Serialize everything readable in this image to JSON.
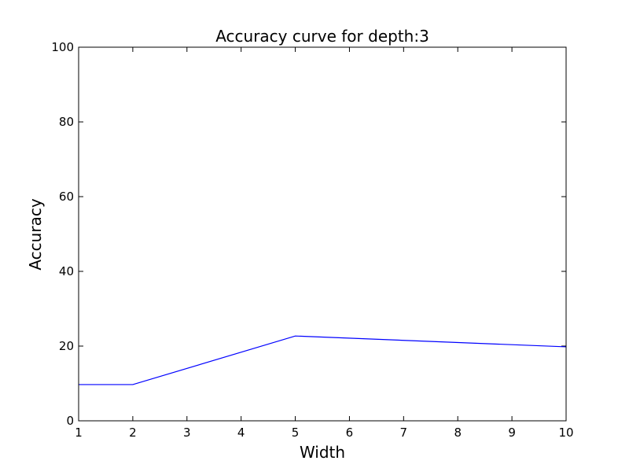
{
  "chart_data": {
    "type": "line",
    "title": "Accuracy curve for depth:3",
    "xlabel": "Width",
    "ylabel": "Accuracy",
    "xlim": [
      1,
      10
    ],
    "ylim": [
      0,
      100
    ],
    "xticks": [
      1,
      2,
      3,
      4,
      5,
      6,
      7,
      8,
      9,
      10
    ],
    "yticks": [
      0,
      20,
      40,
      60,
      80,
      100
    ],
    "grid": false,
    "series": [
      {
        "color": "#0000ff",
        "x": [
          1,
          2,
          5,
          10
        ],
        "y": [
          9.7,
          9.7,
          22.7,
          19.8
        ]
      }
    ]
  }
}
